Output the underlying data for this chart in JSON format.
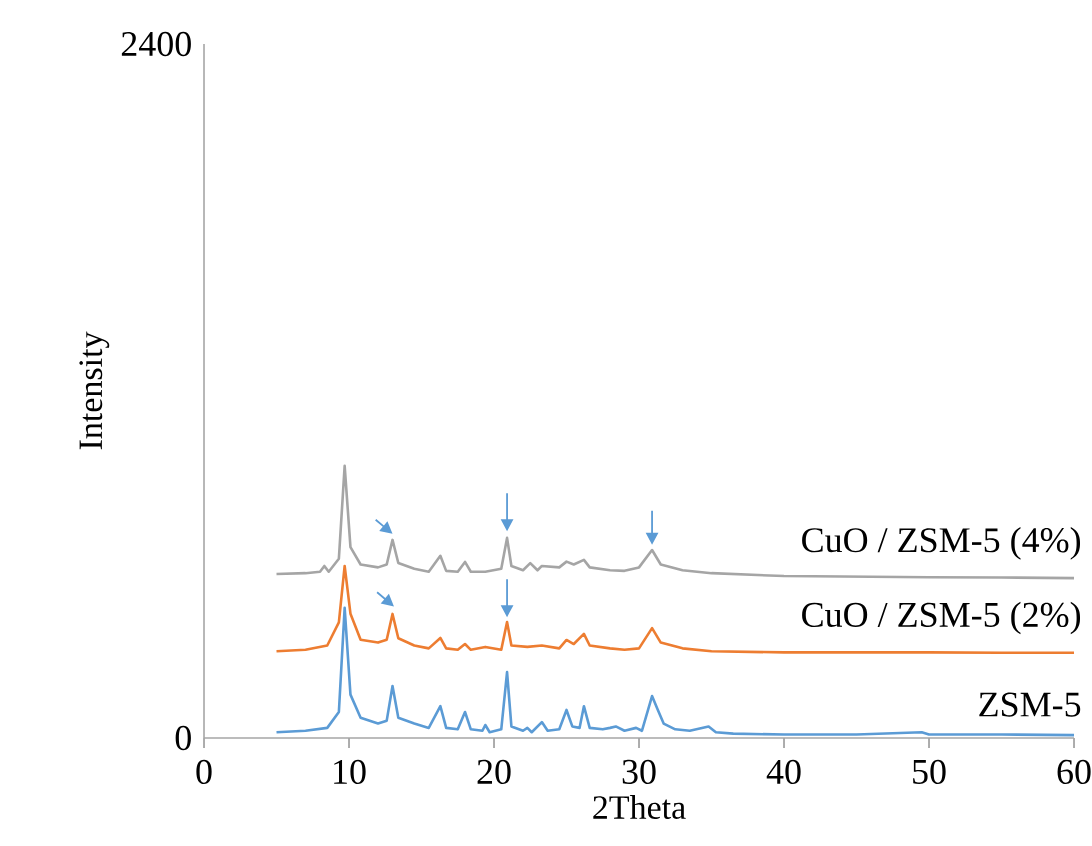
{
  "chart_data": {
    "type": "line",
    "xlabel": "2Theta",
    "ylabel": "Intensity",
    "xlim": [
      0,
      60
    ],
    "ylim": [
      0,
      2400
    ],
    "xticks": [
      0,
      10,
      20,
      30,
      40,
      50,
      60
    ],
    "yticks": [
      0,
      2400
    ],
    "legend": false,
    "grid": false,
    "marker": "none",
    "line_style": "solid",
    "series": [
      {
        "name": "ZSM-5",
        "color": "#5b9bd5",
        "x": [
          5,
          7,
          8.5,
          9.3,
          9.7,
          10.1,
          10.8,
          12,
          12.6,
          13,
          13.4,
          14.5,
          15.5,
          16.3,
          16.7,
          17.5,
          18,
          18.4,
          19.2,
          19.4,
          19.7,
          20.5,
          20.9,
          21.2,
          22,
          22.3,
          22.6,
          23.3,
          23.7,
          24.5,
          25,
          25.4,
          25.9,
          26.2,
          26.6,
          27.5,
          28,
          28.4,
          29,
          29.8,
          30.2,
          30.9,
          31.3,
          31.7,
          32.5,
          33.5,
          34.8,
          35.3,
          36.5,
          40,
          45,
          49.5,
          50,
          55,
          60
        ],
        "values": [
          20,
          25,
          35,
          90,
          450,
          150,
          70,
          50,
          60,
          180,
          70,
          50,
          35,
          110,
          35,
          30,
          90,
          30,
          25,
          45,
          20,
          30,
          228,
          40,
          25,
          35,
          20,
          55,
          25,
          30,
          97,
          40,
          35,
          110,
          35,
          30,
          35,
          40,
          25,
          35,
          25,
          145,
          97,
          50,
          30,
          25,
          40,
          20,
          15,
          12,
          12,
          20,
          12,
          12,
          10
        ]
      },
      {
        "name": "CuO / ZSM-5 (2%)",
        "color": "#ed7d31",
        "x": [
          5,
          7,
          8.5,
          9.3,
          9.7,
          10.1,
          10.8,
          12,
          12.6,
          13,
          13.4,
          14.5,
          15.5,
          16.3,
          16.7,
          17.5,
          18,
          18.4,
          19.4,
          20.5,
          20.9,
          21.2,
          22.3,
          23.3,
          24.5,
          25,
          25.5,
          26.2,
          26.6,
          28,
          29,
          30,
          30.9,
          31.5,
          33,
          35,
          40,
          45,
          50,
          55,
          60
        ],
        "values": [
          300,
          305,
          320,
          400,
          595,
          430,
          340,
          330,
          340,
          429,
          345,
          320,
          310,
          346,
          310,
          305,
          325,
          305,
          315,
          305,
          401,
          320,
          315,
          320,
          310,
          339,
          325,
          360,
          320,
          310,
          305,
          310,
          380,
          330,
          310,
          300,
          296,
          296,
          296,
          295,
          295
        ]
      },
      {
        "name": "CuO / ZSM-5 (4%)",
        "color": "#a5a5a5",
        "x": [
          5,
          7,
          8,
          8.3,
          8.6,
          9.3,
          9.7,
          10.1,
          10.8,
          12,
          12.6,
          13,
          13.4,
          14.5,
          15.5,
          16.3,
          16.7,
          17.5,
          18,
          18.4,
          19.4,
          20.5,
          20.9,
          21.2,
          22,
          22.5,
          23,
          23.3,
          24.5,
          25,
          25.5,
          26.2,
          26.6,
          28,
          29,
          30,
          30.9,
          31.5,
          33,
          35,
          40,
          45,
          50,
          55,
          60
        ],
        "values": [
          567,
          570,
          575,
          595,
          575,
          620,
          941,
          660,
          600,
          590,
          600,
          685,
          605,
          585,
          575,
          630,
          578,
          575,
          609,
          575,
          575,
          585,
          692,
          595,
          580,
          605,
          580,
          595,
          590,
          610,
          600,
          616,
          590,
          580,
          578,
          590,
          650,
          600,
          580,
          570,
          560,
          558,
          556,
          555,
          553
        ]
      }
    ]
  }
}
